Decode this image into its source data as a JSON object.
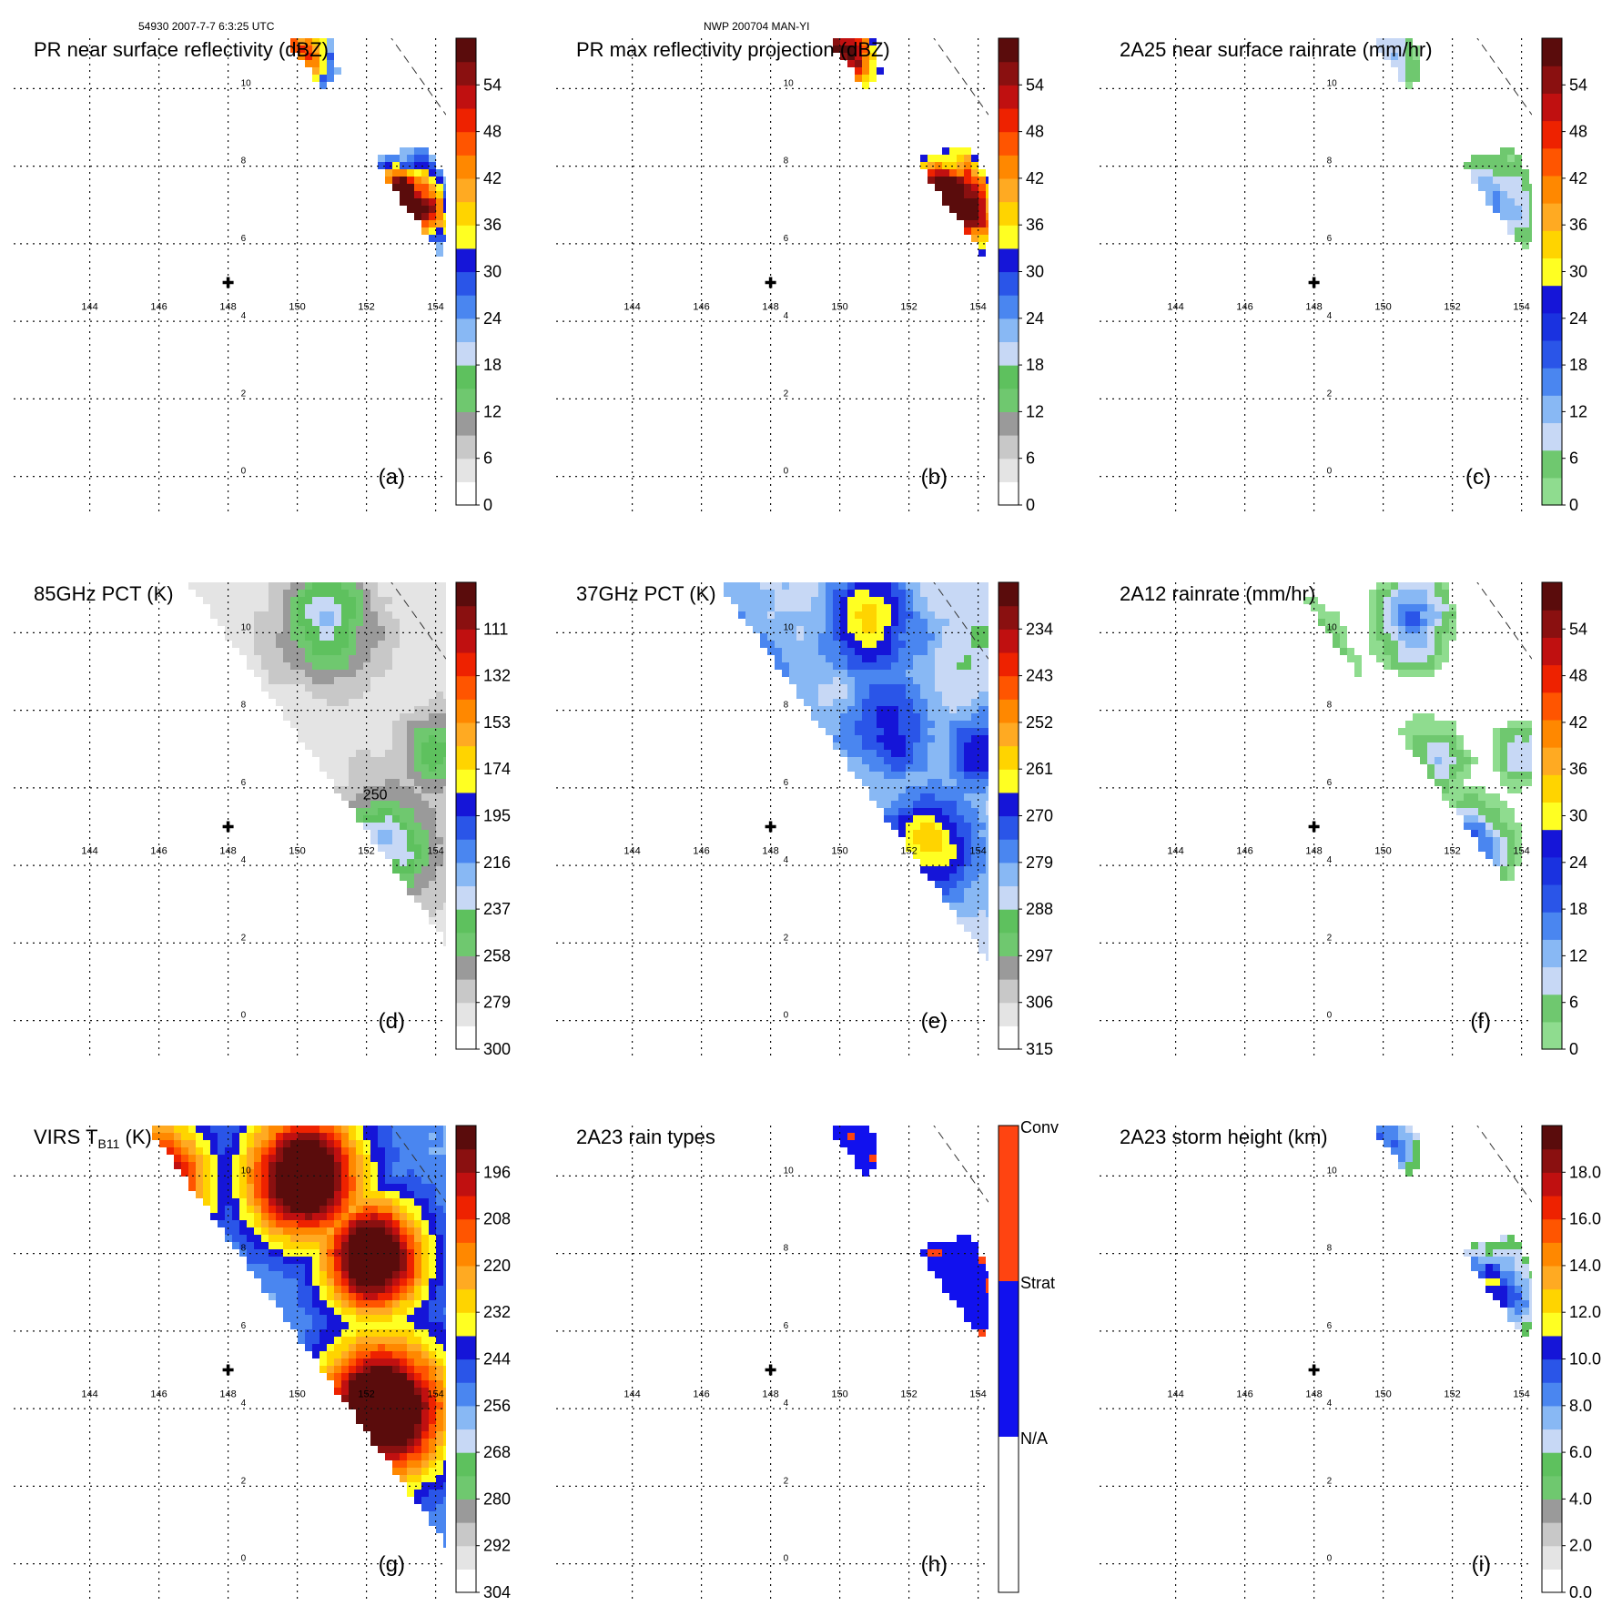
{
  "header": {
    "orbit_time": "54930 2007-7-7 6:3:25 UTC",
    "case_name": "NWP 200704 MAN-YI"
  },
  "map": {
    "lon_ticks": [
      "144",
      "146",
      "148",
      "150",
      "152",
      "154"
    ],
    "lat_ticks": [
      "0",
      "2",
      "4",
      "6",
      "8",
      "10"
    ],
    "lon_range": [
      141.8,
      154.3
    ],
    "lat_range": [
      -0.9,
      11.3
    ],
    "center_marker": {
      "lon": 148,
      "lat": 5
    }
  },
  "chart_data": [
    {
      "type": "heatmap",
      "panel": "a",
      "title": "PR near surface reflectivity (dBZ)",
      "swath": "pr",
      "palette": "refl",
      "colorbar_ticks": [
        "0",
        "6",
        "12",
        "18",
        "24",
        "30",
        "36",
        "42",
        "48",
        "54"
      ],
      "colorbar_range": [
        0,
        60
      ],
      "colorbar_colors": [
        "#ffffff",
        "#e4e4e4",
        "#c8c8c8",
        "#9a9a9a",
        "#6fc86f",
        "#5ec15e",
        "#c7d8f5",
        "#88b8f4",
        "#4a86f0",
        "#2a55e8",
        "#1515d8",
        "#ffff22",
        "#ffd400",
        "#ffaa22",
        "#ff8800",
        "#ff5500",
        "#ee2200",
        "#c01010",
        "#8a1010",
        "#5a0c0c"
      ]
    },
    {
      "type": "heatmap",
      "panel": "b",
      "title": "PR max reflectivity projection (dBZ)",
      "swath": "pr",
      "palette": "refl",
      "colorbar_ticks": [
        "0",
        "6",
        "12",
        "18",
        "24",
        "30",
        "36",
        "42",
        "48",
        "54"
      ],
      "colorbar_range": [
        0,
        60
      ],
      "colorbar_colors": [
        "#ffffff",
        "#e4e4e4",
        "#c8c8c8",
        "#9a9a9a",
        "#6fc86f",
        "#5ec15e",
        "#c7d8f5",
        "#88b8f4",
        "#4a86f0",
        "#2a55e8",
        "#1515d8",
        "#ffff22",
        "#ffd400",
        "#ffaa22",
        "#ff8800",
        "#ff5500",
        "#ee2200",
        "#c01010",
        "#8a1010",
        "#5a0c0c"
      ]
    },
    {
      "type": "heatmap",
      "panel": "c",
      "title": "2A25 near surface rainrate (mm/hr)",
      "swath": "pr",
      "palette": "rain",
      "colorbar_ticks": [
        "0",
        "6",
        "12",
        "18",
        "24",
        "30",
        "36",
        "42",
        "48",
        "54"
      ],
      "colorbar_range": [
        0,
        60
      ],
      "colorbar_colors": [
        "#8fdc8f",
        "#6fc86f",
        "#c7d8f5",
        "#88b8f4",
        "#4a86f0",
        "#2a55e8",
        "#1a32e0",
        "#1515d8",
        "#ffff22",
        "#ffd400",
        "#ffaa22",
        "#ff8800",
        "#ff5500",
        "#ee2200",
        "#c01010",
        "#8a1010",
        "#5a0c0c"
      ]
    },
    {
      "type": "heatmap",
      "panel": "d",
      "title": "85GHz PCT (K)",
      "swath": "tmi",
      "palette": "pct85",
      "colorbar_ticks": [
        "111",
        "132",
        "153",
        "174",
        "195",
        "216",
        "237",
        "258",
        "279",
        "300"
      ],
      "colorbar_range": [
        300,
        90
      ],
      "colorbar_colors": [
        "#ffffff",
        "#e4e4e4",
        "#c8c8c8",
        "#9a9a9a",
        "#6fc86f",
        "#5ec15e",
        "#c7d8f5",
        "#88b8f4",
        "#4a86f0",
        "#2a55e8",
        "#1515d8",
        "#ffff22",
        "#ffd400",
        "#ffaa22",
        "#ff8800",
        "#ff5500",
        "#ee2200",
        "#c01010",
        "#8a1010",
        "#5a0c0c"
      ],
      "annotations": [
        "250"
      ]
    },
    {
      "type": "heatmap",
      "panel": "e",
      "title": "37GHz PCT (K)",
      "swath": "tmi",
      "palette": "pct37",
      "colorbar_ticks": [
        "234",
        "243",
        "252",
        "261",
        "270",
        "279",
        "288",
        "297",
        "306",
        "315"
      ],
      "colorbar_range": [
        315,
        225
      ],
      "colorbar_colors": [
        "#ffffff",
        "#e4e4e4",
        "#c8c8c8",
        "#9a9a9a",
        "#6fc86f",
        "#5ec15e",
        "#c7d8f5",
        "#88b8f4",
        "#4a86f0",
        "#2a55e8",
        "#1515d8",
        "#ffff22",
        "#ffd400",
        "#ffaa22",
        "#ff8800",
        "#ff5500",
        "#ee2200",
        "#c01010",
        "#8a1010",
        "#5a0c0c"
      ]
    },
    {
      "type": "heatmap",
      "panel": "f",
      "title": "2A12 rainrate (mm/hr)",
      "swath": "tmi",
      "palette": "rain12",
      "colorbar_ticks": [
        "0",
        "6",
        "12",
        "18",
        "24",
        "30",
        "36",
        "42",
        "48",
        "54"
      ],
      "colorbar_range": [
        0,
        60
      ],
      "colorbar_colors": [
        "#8fdc8f",
        "#6fc86f",
        "#c7d8f5",
        "#88b8f4",
        "#4a86f0",
        "#2a55e8",
        "#1a32e0",
        "#1515d8",
        "#ffff22",
        "#ffd400",
        "#ffaa22",
        "#ff8800",
        "#ff5500",
        "#ee2200",
        "#c01010",
        "#8a1010",
        "#5a0c0c"
      ]
    },
    {
      "type": "heatmap",
      "panel": "g",
      "title": "VIRS T",
      "title_sub": "B11",
      "title_tail": " (K)",
      "swath": "tmi",
      "palette": "virs",
      "colorbar_ticks": [
        "196",
        "208",
        "220",
        "232",
        "244",
        "256",
        "268",
        "280",
        "292",
        "304"
      ],
      "colorbar_range": [
        304,
        184
      ],
      "colorbar_colors": [
        "#ffffff",
        "#e4e4e4",
        "#c8c8c8",
        "#9a9a9a",
        "#6fc86f",
        "#5ec15e",
        "#c7d8f5",
        "#88b8f4",
        "#4a86f0",
        "#2a55e8",
        "#1515d8",
        "#ffff22",
        "#ffd400",
        "#ffaa22",
        "#ff8800",
        "#ff5500",
        "#ee2200",
        "#c01010",
        "#8a1010",
        "#5a0c0c"
      ]
    },
    {
      "type": "heatmap",
      "panel": "h",
      "title": "2A23 rain types",
      "swath": "pr",
      "palette": "types",
      "colorbar_type": "categorical",
      "colorbar_ticks": [
        "N/A",
        "Strat",
        "Conv"
      ],
      "colorbar_colors": [
        "#ffffff",
        "#1111ee",
        "#ff4411"
      ]
    },
    {
      "type": "heatmap",
      "panel": "i",
      "title": "2A23 storm height (km)",
      "swath": "pr",
      "palette": "height",
      "colorbar_ticks": [
        "0.0",
        "2.0",
        "4.0",
        "6.0",
        "8.0",
        "10.0",
        "12.0",
        "14.0",
        "16.0",
        "18.0"
      ],
      "colorbar_range": [
        0,
        20
      ],
      "colorbar_colors": [
        "#ffffff",
        "#e4e4e4",
        "#c8c8c8",
        "#9a9a9a",
        "#6fc86f",
        "#5ec15e",
        "#c7d8f5",
        "#88b8f4",
        "#4a86f0",
        "#2a55e8",
        "#1515d8",
        "#ffff22",
        "#ffd400",
        "#ffaa22",
        "#ff8800",
        "#ff5500",
        "#ee2200",
        "#c01010",
        "#8a1010",
        "#5a0c0c"
      ]
    }
  ]
}
